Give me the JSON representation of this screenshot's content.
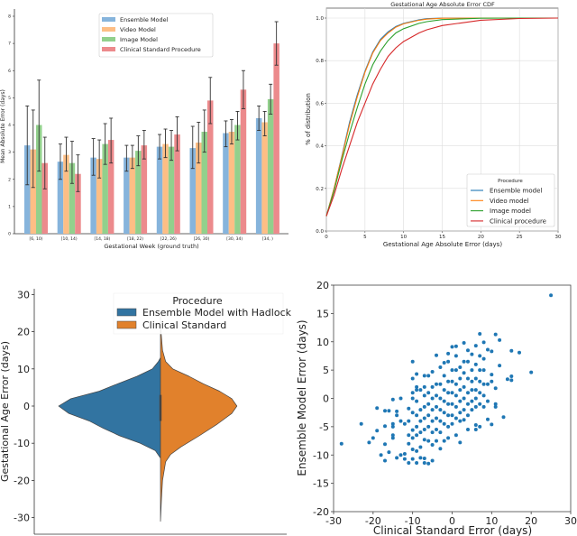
{
  "chart_data": [
    {
      "type": "bar",
      "title": "",
      "xlabel": "Gestational Week (ground truth)",
      "ylabel": "Mean Absolute Error (days)",
      "ylim": [
        0,
        8
      ],
      "yticks": [
        "0",
        "1",
        "2",
        "3",
        "4",
        "5",
        "6",
        "7",
        "8"
      ],
      "categories": [
        "[6, 10)",
        "[10, 14)",
        "[14, 18)",
        "[18, 22)",
        "[22, 26)",
        "[26, 30)",
        "[30, 34)",
        "[34, )"
      ],
      "legend_position": "top-center",
      "series": [
        {
          "name": "Ensemble Model",
          "color": "#86b4dc",
          "values": [
            3.25,
            2.65,
            2.8,
            2.8,
            3.2,
            3.15,
            3.7,
            4.25
          ],
          "err_low": [
            1.8,
            2.0,
            2.15,
            2.3,
            2.75,
            2.4,
            3.2,
            3.8
          ],
          "err_high": [
            4.7,
            3.3,
            3.5,
            3.25,
            3.65,
            3.95,
            4.15,
            4.7
          ]
        },
        {
          "name": "Video Model",
          "color": "#fdbe85",
          "values": [
            3.1,
            2.9,
            2.75,
            2.8,
            3.3,
            3.35,
            3.75,
            4.1
          ],
          "err_low": [
            1.7,
            2.3,
            2.05,
            2.4,
            2.8,
            2.6,
            3.3,
            3.6
          ],
          "err_high": [
            4.55,
            3.55,
            3.45,
            3.25,
            3.85,
            4.1,
            4.2,
            4.5
          ]
        },
        {
          "name": "Image Model",
          "color": "#92d08c",
          "values": [
            4.0,
            2.6,
            3.3,
            3.05,
            3.2,
            3.75,
            4.0,
            4.95
          ],
          "err_low": [
            2.3,
            1.85,
            2.55,
            2.5,
            2.7,
            3.0,
            3.45,
            4.4
          ],
          "err_high": [
            5.65,
            3.4,
            4.05,
            3.6,
            3.8,
            4.55,
            4.5,
            5.5
          ]
        },
        {
          "name": "Clinical Standard Procedure",
          "color": "#ec8a8c",
          "values": [
            2.6,
            2.2,
            3.45,
            3.25,
            3.65,
            4.9,
            5.3,
            7.0
          ],
          "err_low": [
            1.65,
            1.55,
            2.6,
            2.75,
            3.05,
            4.05,
            4.6,
            6.2
          ],
          "err_high": [
            3.55,
            2.9,
            4.25,
            3.8,
            4.3,
            5.75,
            6.0,
            7.8
          ]
        }
      ]
    },
    {
      "type": "line",
      "title": "Gestational Age Absolute Error CDF",
      "xlabel": "Gestational Age Absolute Error (days)",
      "ylabel": "% of distribution",
      "xlim": [
        0,
        30
      ],
      "ylim": [
        0,
        1.05
      ],
      "xticks": [
        "0",
        "5",
        "10",
        "15",
        "20",
        "25",
        "30"
      ],
      "yticks": [
        "0.0",
        "0.2",
        "0.4",
        "0.6",
        "0.8",
        "1.0"
      ],
      "grid": true,
      "legend_title": "Procedure",
      "legend_position": "lower-right",
      "x": [
        0,
        1,
        2,
        3,
        4,
        5,
        6,
        7,
        8,
        9,
        10,
        12,
        13,
        15,
        20,
        25,
        30
      ],
      "series": [
        {
          "name": "Ensemble model",
          "color": "#1f77b4",
          "values": [
            0.07,
            0.2,
            0.35,
            0.51,
            0.64,
            0.75,
            0.84,
            0.9,
            0.935,
            0.96,
            0.975,
            0.992,
            0.997,
            1.0,
            1.0,
            1.0,
            1.0
          ]
        },
        {
          "name": "Video model",
          "color": "#ff7f0e",
          "values": [
            0.07,
            0.2,
            0.345,
            0.5,
            0.63,
            0.745,
            0.835,
            0.895,
            0.93,
            0.957,
            0.973,
            0.99,
            0.995,
            0.999,
            1.0,
            1.0,
            1.0
          ]
        },
        {
          "name": "Image model",
          "color": "#2ca02c",
          "values": [
            0.07,
            0.19,
            0.33,
            0.46,
            0.58,
            0.69,
            0.78,
            0.845,
            0.895,
            0.93,
            0.95,
            0.975,
            0.983,
            0.993,
            0.999,
            1.0,
            1.0
          ]
        },
        {
          "name": "Clinical procedure",
          "color": "#d62728",
          "values": [
            0.07,
            0.17,
            0.29,
            0.4,
            0.51,
            0.6,
            0.69,
            0.76,
            0.82,
            0.86,
            0.89,
            0.93,
            0.945,
            0.965,
            0.99,
            0.998,
            1.0
          ]
        }
      ]
    },
    {
      "type": "violin",
      "xlabel": "",
      "ylabel": "Gestational Age Error (days)",
      "ylim": [
        -35,
        31
      ],
      "yticks": [
        "-30",
        "-20",
        "-10",
        "0",
        "10",
        "20",
        "30"
      ],
      "ytick_values": [
        -30,
        -20,
        -10,
        0,
        10,
        20,
        30
      ],
      "legend_title": "Procedure",
      "legend_position": "top-right",
      "series": [
        {
          "name": "Ensemble Model with Hadlock",
          "color": "#3274a1",
          "side": "left",
          "y": [
            -14,
            -12,
            -10,
            -8,
            -6,
            -4,
            -2,
            0,
            2,
            4,
            6,
            8,
            10,
            12,
            13
          ],
          "density": [
            0,
            0.05,
            0.2,
            0.4,
            0.56,
            0.7,
            0.9,
            1.0,
            0.88,
            0.6,
            0.42,
            0.23,
            0.08,
            0.02,
            0
          ]
        },
        {
          "name": "Clinical Standard",
          "color": "#e1812c",
          "side": "right",
          "y": [
            -31,
            -25,
            -20,
            -15,
            -13,
            -11,
            -8,
            -5,
            -2,
            0,
            2,
            4,
            6,
            8,
            10,
            12,
            15,
            20,
            24
          ],
          "density": [
            0,
            0.01,
            0.02,
            0.05,
            0.1,
            0.2,
            0.38,
            0.55,
            0.7,
            0.75,
            0.7,
            0.58,
            0.42,
            0.28,
            0.12,
            0.05,
            0.02,
            0.005,
            0
          ]
        }
      ]
    },
    {
      "type": "scatter",
      "xlabel": "Clinical Standard Error (days)",
      "ylabel": "Ensemble Model Error (days)",
      "xlim": [
        -30,
        30
      ],
      "ylim": [
        -20,
        20
      ],
      "xticks": [
        "-30",
        "-20",
        "-10",
        "0",
        "10",
        "20",
        "30"
      ],
      "yticks": [
        "-20",
        "-15",
        "-10",
        "-5",
        "0",
        "5",
        "10",
        "15",
        "20"
      ],
      "color": "#1f77b4",
      "points": [
        [
          -28,
          -8
        ],
        [
          -23,
          -4.5
        ],
        [
          -21,
          -7.8
        ],
        [
          -20,
          -7
        ],
        [
          -19,
          -1.7
        ],
        [
          -19,
          -5.7
        ],
        [
          -18,
          -10
        ],
        [
          -17,
          -2.2
        ],
        [
          -17,
          -4.9
        ],
        [
          -17,
          -8.1
        ],
        [
          -17,
          -11
        ],
        [
          -16,
          -2.2
        ],
        [
          -16,
          -9.5
        ],
        [
          -15,
          -0.2
        ],
        [
          -15,
          -4.5
        ],
        [
          -15,
          -5
        ],
        [
          -15,
          -6.5
        ],
        [
          -15,
          -7
        ],
        [
          -14,
          -2.3
        ],
        [
          -14,
          -3
        ],
        [
          -14,
          -10.5
        ],
        [
          -13,
          0
        ],
        [
          -13,
          -4
        ],
        [
          -13,
          -10
        ],
        [
          -12,
          -4.5
        ],
        [
          -12,
          -9.8
        ],
        [
          -12,
          -10.7
        ],
        [
          -11,
          -1.8
        ],
        [
          -11,
          -4
        ],
        [
          -11,
          -6.5
        ],
        [
          -11,
          -8
        ],
        [
          -11,
          -11.4
        ],
        [
          -10,
          6.5
        ],
        [
          -10,
          3.5
        ],
        [
          -10,
          1
        ],
        [
          -10,
          0
        ],
        [
          -10,
          -2.5
        ],
        [
          -10,
          -5.6
        ],
        [
          -10,
          -7
        ],
        [
          -10,
          -9
        ],
        [
          -10,
          -10.7
        ],
        [
          -9,
          4.3
        ],
        [
          -9,
          2
        ],
        [
          -9,
          1.5
        ],
        [
          -9,
          -0.5
        ],
        [
          -9,
          -3
        ],
        [
          -9,
          -5
        ],
        [
          -9,
          -6.5
        ],
        [
          -9,
          -9.3
        ],
        [
          -9,
          -11.4
        ],
        [
          -8,
          1.5
        ],
        [
          -8,
          -2
        ],
        [
          -8,
          -4
        ],
        [
          -8,
          -6
        ],
        [
          -8,
          -8.6
        ],
        [
          -8,
          -10.5
        ],
        [
          -7,
          4
        ],
        [
          -7,
          2
        ],
        [
          -7,
          0.5
        ],
        [
          -7,
          -1.5
        ],
        [
          -7,
          -3.5
        ],
        [
          -7,
          -5.5
        ],
        [
          -7,
          -7.3
        ],
        [
          -7,
          -10.6
        ],
        [
          -7,
          -11.4
        ],
        [
          -6,
          4
        ],
        [
          -6,
          1
        ],
        [
          -6,
          -1
        ],
        [
          -6,
          -3
        ],
        [
          -6,
          -5
        ],
        [
          -6,
          -7.5
        ],
        [
          -6,
          -11.5
        ],
        [
          -5,
          4.7
        ],
        [
          -5,
          2
        ],
        [
          -5,
          0
        ],
        [
          -5,
          -2
        ],
        [
          -5,
          -4
        ],
        [
          -5,
          -6
        ],
        [
          -5,
          -8.2
        ],
        [
          -5,
          -11
        ],
        [
          -4,
          7.6
        ],
        [
          -4,
          2.5
        ],
        [
          -4,
          0.5
        ],
        [
          -4,
          -1.5
        ],
        [
          -4,
          -3.5
        ],
        [
          -4,
          -5.5
        ],
        [
          -4,
          -7.5
        ],
        [
          -3,
          5.5
        ],
        [
          -3,
          2.5
        ],
        [
          -3,
          0
        ],
        [
          -3,
          -2
        ],
        [
          -3,
          -4
        ],
        [
          -3,
          -6
        ],
        [
          -3,
          -8.9
        ],
        [
          -2,
          6.3
        ],
        [
          -2,
          4
        ],
        [
          -2,
          1.5
        ],
        [
          -2,
          -0.5
        ],
        [
          -2,
          -2.5
        ],
        [
          -2,
          -4.5
        ],
        [
          -2,
          -7.5
        ],
        [
          -1,
          7.9
        ],
        [
          -1,
          6.5
        ],
        [
          -1,
          3
        ],
        [
          -1,
          1
        ],
        [
          -1,
          -1
        ],
        [
          -1,
          -3
        ],
        [
          -1,
          -5
        ],
        [
          -1,
          -7
        ],
        [
          0,
          9.1
        ],
        [
          0,
          5
        ],
        [
          0,
          3
        ],
        [
          0,
          1
        ],
        [
          0,
          -1
        ],
        [
          0,
          -3
        ],
        [
          0,
          -4.5
        ],
        [
          1,
          9.2
        ],
        [
          1,
          7.5
        ],
        [
          1,
          5
        ],
        [
          1,
          2.5
        ],
        [
          1,
          0.5
        ],
        [
          1,
          -1.5
        ],
        [
          1,
          -3.5
        ],
        [
          1,
          -6.5
        ],
        [
          2,
          5.5
        ],
        [
          2,
          3.5
        ],
        [
          2,
          1.5
        ],
        [
          2,
          -0.5
        ],
        [
          2,
          -2.5
        ],
        [
          2,
          -4
        ],
        [
          2,
          -7.8
        ],
        [
          3,
          9.8
        ],
        [
          3,
          6.5
        ],
        [
          3,
          4.5
        ],
        [
          3,
          2
        ],
        [
          3,
          0
        ],
        [
          3,
          -2
        ],
        [
          3,
          -3.8
        ],
        [
          4,
          8.5
        ],
        [
          4,
          6.5
        ],
        [
          4,
          3.5
        ],
        [
          4,
          1
        ],
        [
          4,
          -1
        ],
        [
          4,
          -3
        ],
        [
          4,
          -5.5
        ],
        [
          5,
          7.8
        ],
        [
          5,
          5
        ],
        [
          5,
          3
        ],
        [
          5,
          1.5
        ],
        [
          5,
          -0.5
        ],
        [
          5,
          -2
        ],
        [
          6,
          9.3
        ],
        [
          6,
          6
        ],
        [
          6,
          3.5
        ],
        [
          6,
          1.5
        ],
        [
          6,
          0
        ],
        [
          6,
          -1.5
        ],
        [
          6,
          -4.7
        ],
        [
          6,
          -5.5
        ],
        [
          7,
          11.4
        ],
        [
          7,
          7.5
        ],
        [
          7,
          5
        ],
        [
          7,
          3
        ],
        [
          7,
          1
        ],
        [
          7,
          -1
        ],
        [
          7,
          -5
        ],
        [
          8,
          9.9
        ],
        [
          8,
          7
        ],
        [
          8,
          5
        ],
        [
          8,
          2.5
        ],
        [
          8,
          0.5
        ],
        [
          8,
          -1.5
        ],
        [
          9,
          8.6
        ],
        [
          9,
          2.5
        ],
        [
          9,
          -0.5
        ],
        [
          9,
          -3.7
        ],
        [
          10,
          8.3
        ],
        [
          10,
          4.2
        ],
        [
          10,
          3
        ],
        [
          10,
          -4.6
        ],
        [
          11,
          11.3
        ],
        [
          11,
          1.8
        ],
        [
          11,
          -1
        ],
        [
          11,
          -1.5
        ],
        [
          12,
          10.3
        ],
        [
          12,
          5.8
        ],
        [
          13,
          -3.3
        ],
        [
          14,
          3.4
        ],
        [
          15,
          8.4
        ],
        [
          15,
          3.9
        ],
        [
          15,
          3.2
        ],
        [
          17,
          8.1
        ],
        [
          20,
          4.6
        ],
        [
          25,
          18.2
        ]
      ]
    }
  ]
}
